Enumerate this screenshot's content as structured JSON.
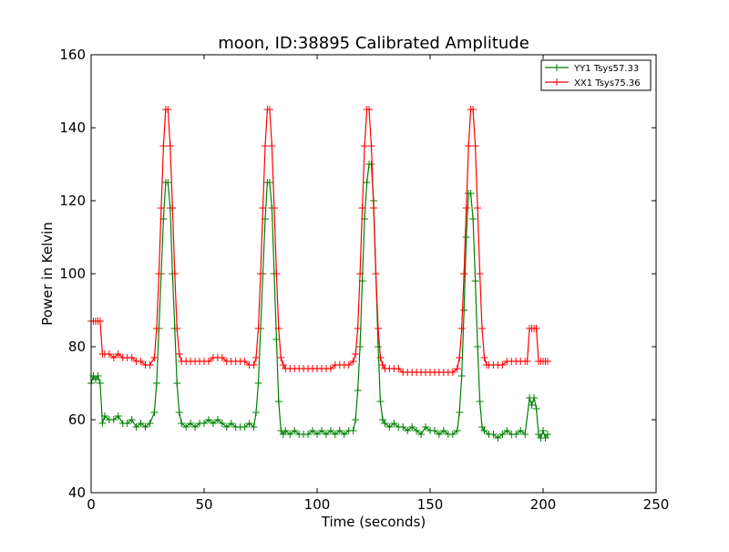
{
  "chart_data": {
    "type": "line",
    "title": "moon, ID:38895 Calibrated Amplitude",
    "xlabel": "Time (seconds)",
    "ylabel": "Power in Kelvin",
    "xlim": [
      0,
      250
    ],
    "ylim": [
      40,
      160
    ],
    "xticks": [
      0,
      50,
      100,
      150,
      200,
      250
    ],
    "yticks": [
      40,
      60,
      80,
      100,
      120,
      140,
      160
    ],
    "xtick_labels": [
      "0",
      "50",
      "100",
      "150",
      "200",
      "250"
    ],
    "ytick_labels": [
      "40",
      "60",
      "80",
      "100",
      "120",
      "140",
      "160"
    ],
    "grid": false,
    "legend_position": "top-right",
    "marker": "+",
    "series": [
      {
        "name": "YY1 Tsys57.33",
        "color": "#008000",
        "points": [
          [
            0,
            70
          ],
          [
            1,
            72
          ],
          [
            2,
            71
          ],
          [
            3,
            72
          ],
          [
            4,
            70
          ],
          [
            5,
            59
          ],
          [
            6,
            61
          ],
          [
            8,
            60
          ],
          [
            10,
            60
          ],
          [
            12,
            61
          ],
          [
            14,
            59
          ],
          [
            16,
            59
          ],
          [
            18,
            60
          ],
          [
            20,
            58
          ],
          [
            22,
            59
          ],
          [
            24,
            58
          ],
          [
            26,
            59
          ],
          [
            28,
            62
          ],
          [
            29,
            70
          ],
          [
            30,
            85
          ],
          [
            31,
            100
          ],
          [
            32,
            115
          ],
          [
            33,
            125
          ],
          [
            34,
            125
          ],
          [
            35,
            118
          ],
          [
            36,
            100
          ],
          [
            37,
            85
          ],
          [
            38,
            70
          ],
          [
            39,
            62
          ],
          [
            40,
            59
          ],
          [
            42,
            58
          ],
          [
            44,
            59
          ],
          [
            46,
            58
          ],
          [
            48,
            59
          ],
          [
            50,
            59
          ],
          [
            52,
            60
          ],
          [
            54,
            59
          ],
          [
            56,
            60
          ],
          [
            58,
            59
          ],
          [
            60,
            58
          ],
          [
            62,
            59
          ],
          [
            64,
            58
          ],
          [
            66,
            58
          ],
          [
            68,
            58
          ],
          [
            70,
            59
          ],
          [
            72,
            58
          ],
          [
            73,
            62
          ],
          [
            74,
            70
          ],
          [
            75,
            85
          ],
          [
            76,
            100
          ],
          [
            77,
            115
          ],
          [
            78,
            125
          ],
          [
            79,
            125
          ],
          [
            80,
            118
          ],
          [
            81,
            100
          ],
          [
            82,
            82
          ],
          [
            83,
            65
          ],
          [
            84,
            57
          ],
          [
            85,
            56
          ],
          [
            86,
            57
          ],
          [
            88,
            56
          ],
          [
            90,
            57
          ],
          [
            92,
            56
          ],
          [
            94,
            56
          ],
          [
            96,
            56
          ],
          [
            98,
            57
          ],
          [
            100,
            56
          ],
          [
            102,
            57
          ],
          [
            104,
            56
          ],
          [
            106,
            57
          ],
          [
            108,
            56
          ],
          [
            110,
            57
          ],
          [
            112,
            56
          ],
          [
            114,
            57
          ],
          [
            116,
            57
          ],
          [
            117,
            60
          ],
          [
            118,
            68
          ],
          [
            119,
            80
          ],
          [
            120,
            98
          ],
          [
            121,
            115
          ],
          [
            122,
            125
          ],
          [
            123,
            130
          ],
          [
            124,
            130
          ],
          [
            125,
            120
          ],
          [
            126,
            100
          ],
          [
            127,
            80
          ],
          [
            128,
            65
          ],
          [
            129,
            60
          ],
          [
            130,
            59
          ],
          [
            132,
            58
          ],
          [
            134,
            59
          ],
          [
            136,
            58
          ],
          [
            138,
            58
          ],
          [
            140,
            57
          ],
          [
            142,
            58
          ],
          [
            144,
            57
          ],
          [
            146,
            56
          ],
          [
            148,
            58
          ],
          [
            150,
            57
          ],
          [
            152,
            57
          ],
          [
            154,
            56
          ],
          [
            156,
            57
          ],
          [
            158,
            56
          ],
          [
            160,
            56
          ],
          [
            162,
            57
          ],
          [
            163,
            62
          ],
          [
            164,
            72
          ],
          [
            165,
            90
          ],
          [
            166,
            110
          ],
          [
            167,
            122
          ],
          [
            168,
            122
          ],
          [
            169,
            115
          ],
          [
            170,
            98
          ],
          [
            171,
            80
          ],
          [
            172,
            65
          ],
          [
            173,
            58
          ],
          [
            174,
            57
          ],
          [
            176,
            56
          ],
          [
            178,
            56
          ],
          [
            180,
            55
          ],
          [
            182,
            56
          ],
          [
            184,
            57
          ],
          [
            186,
            56
          ],
          [
            188,
            56
          ],
          [
            190,
            57
          ],
          [
            192,
            56
          ],
          [
            194,
            66
          ],
          [
            195,
            64
          ],
          [
            196,
            66
          ],
          [
            197,
            63
          ],
          [
            198,
            56
          ],
          [
            199,
            55
          ],
          [
            200,
            57
          ],
          [
            201,
            55
          ],
          [
            202,
            56
          ]
        ]
      },
      {
        "name": "XX1 Tsys75.36",
        "color": "#ff0000",
        "points": [
          [
            0,
            87
          ],
          [
            1,
            87
          ],
          [
            2,
            87
          ],
          [
            3,
            87
          ],
          [
            4,
            87
          ],
          [
            5,
            78
          ],
          [
            6,
            78
          ],
          [
            8,
            78
          ],
          [
            10,
            77
          ],
          [
            12,
            78
          ],
          [
            14,
            77
          ],
          [
            16,
            77
          ],
          [
            18,
            77
          ],
          [
            20,
            76
          ],
          [
            22,
            76
          ],
          [
            24,
            75
          ],
          [
            26,
            75
          ],
          [
            28,
            77
          ],
          [
            29,
            85
          ],
          [
            30,
            100
          ],
          [
            31,
            118
          ],
          [
            32,
            135
          ],
          [
            33,
            145
          ],
          [
            34,
            145
          ],
          [
            35,
            135
          ],
          [
            36,
            118
          ],
          [
            37,
            100
          ],
          [
            38,
            85
          ],
          [
            39,
            78
          ],
          [
            40,
            76
          ],
          [
            42,
            76
          ],
          [
            44,
            76
          ],
          [
            46,
            76
          ],
          [
            48,
            76
          ],
          [
            50,
            76
          ],
          [
            52,
            76
          ],
          [
            54,
            77
          ],
          [
            56,
            77
          ],
          [
            58,
            77
          ],
          [
            60,
            76
          ],
          [
            62,
            76
          ],
          [
            64,
            76
          ],
          [
            66,
            76
          ],
          [
            68,
            76
          ],
          [
            70,
            75
          ],
          [
            72,
            75
          ],
          [
            73,
            77
          ],
          [
            74,
            85
          ],
          [
            75,
            100
          ],
          [
            76,
            118
          ],
          [
            77,
            135
          ],
          [
            78,
            145
          ],
          [
            79,
            145
          ],
          [
            80,
            135
          ],
          [
            81,
            118
          ],
          [
            82,
            100
          ],
          [
            83,
            85
          ],
          [
            84,
            77
          ],
          [
            85,
            75
          ],
          [
            86,
            74
          ],
          [
            88,
            74
          ],
          [
            90,
            74
          ],
          [
            92,
            74
          ],
          [
            94,
            74
          ],
          [
            96,
            74
          ],
          [
            98,
            74
          ],
          [
            100,
            74
          ],
          [
            102,
            74
          ],
          [
            104,
            74
          ],
          [
            106,
            74
          ],
          [
            108,
            75
          ],
          [
            110,
            75
          ],
          [
            112,
            75
          ],
          [
            114,
            75
          ],
          [
            116,
            76
          ],
          [
            117,
            78
          ],
          [
            118,
            85
          ],
          [
            119,
            100
          ],
          [
            120,
            118
          ],
          [
            121,
            135
          ],
          [
            122,
            145
          ],
          [
            123,
            145
          ],
          [
            124,
            135
          ],
          [
            125,
            118
          ],
          [
            126,
            100
          ],
          [
            127,
            85
          ],
          [
            128,
            77
          ],
          [
            129,
            75
          ],
          [
            130,
            74
          ],
          [
            132,
            74
          ],
          [
            134,
            74
          ],
          [
            136,
            74
          ],
          [
            138,
            73
          ],
          [
            140,
            73
          ],
          [
            142,
            73
          ],
          [
            144,
            73
          ],
          [
            146,
            73
          ],
          [
            148,
            73
          ],
          [
            150,
            73
          ],
          [
            152,
            73
          ],
          [
            154,
            73
          ],
          [
            156,
            73
          ],
          [
            158,
            73
          ],
          [
            160,
            73
          ],
          [
            162,
            74
          ],
          [
            163,
            77
          ],
          [
            164,
            85
          ],
          [
            165,
            100
          ],
          [
            166,
            118
          ],
          [
            167,
            135
          ],
          [
            168,
            145
          ],
          [
            169,
            145
          ],
          [
            170,
            135
          ],
          [
            171,
            118
          ],
          [
            172,
            100
          ],
          [
            173,
            85
          ],
          [
            174,
            77
          ],
          [
            175,
            75
          ],
          [
            176,
            75
          ],
          [
            178,
            75
          ],
          [
            180,
            75
          ],
          [
            182,
            75
          ],
          [
            184,
            76
          ],
          [
            186,
            76
          ],
          [
            188,
            76
          ],
          [
            190,
            76
          ],
          [
            192,
            76
          ],
          [
            193,
            76
          ],
          [
            194,
            85
          ],
          [
            195,
            85
          ],
          [
            196,
            85
          ],
          [
            197,
            85
          ],
          [
            198,
            76
          ],
          [
            199,
            76
          ],
          [
            200,
            76
          ],
          [
            201,
            76
          ],
          [
            202,
            76
          ]
        ]
      }
    ]
  }
}
